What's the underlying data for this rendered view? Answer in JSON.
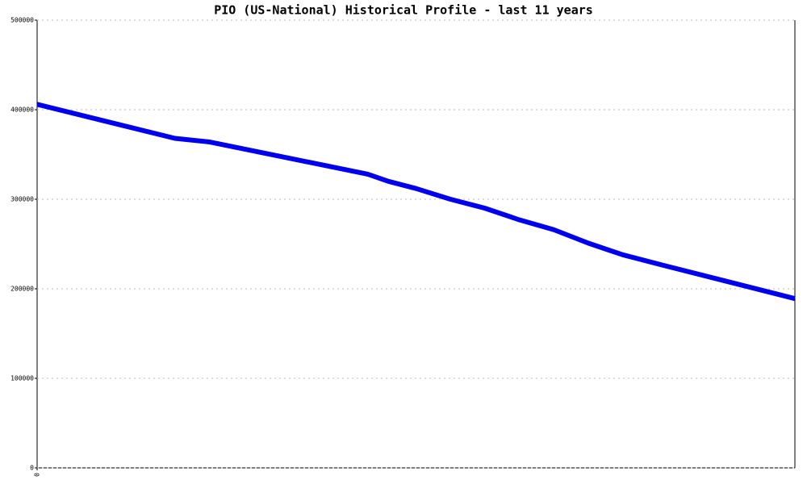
{
  "chart_data": {
    "type": "line",
    "title": "PIO (US-National) Historical Profile - last 11 years",
    "x": [
      0,
      2,
      2.5,
      4.8,
      5.1,
      5.5,
      6,
      6.5,
      7,
      7.5,
      8,
      8.5,
      9.1,
      11
    ],
    "series": [
      {
        "color": "#0000ee",
        "values": [
          406000,
          368000,
          364000,
          328000,
          320000,
          312000,
          300000,
          290000,
          277000,
          266000,
          251000,
          238000,
          226000,
          189000
        ]
      }
    ],
    "xlim": [
      0,
      11
    ],
    "xticks": [
      0
    ],
    "ylim": [
      0,
      500000
    ],
    "yticks": [
      0,
      100000,
      200000,
      300000,
      400000,
      500000
    ],
    "grid": true
  }
}
